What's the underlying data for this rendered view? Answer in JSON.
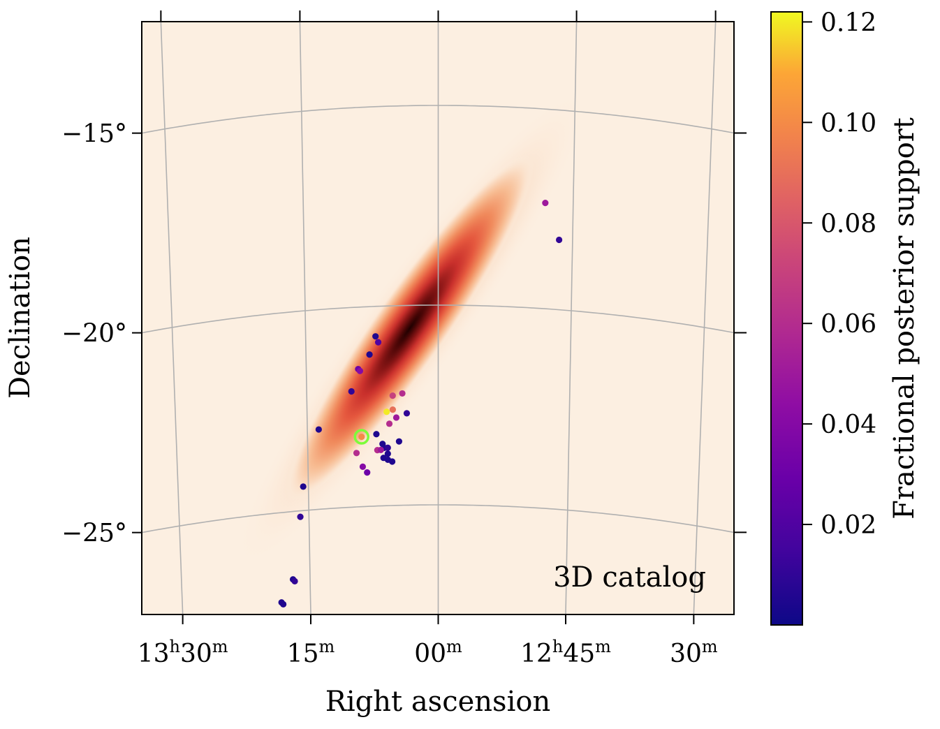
{
  "chart_data": {
    "type": "scatter",
    "projection": "sky map (RA/Dec graticule)",
    "xlabel": "Right ascension",
    "ylabel": "Declination",
    "annotation": "3D catalog",
    "x_ticks": [
      {
        "ra_min": 810,
        "main": "13",
        "sup1": "h",
        "mid": "30",
        "sup2": "m"
      },
      {
        "ra_min": 795,
        "main": "",
        "sup1": "",
        "mid": "15",
        "sup2": "m"
      },
      {
        "ra_min": 780,
        "main": "",
        "sup1": "",
        "mid": "00",
        "sup2": "m"
      },
      {
        "ra_min": 765,
        "main": "12",
        "sup1": "h",
        "mid": "45",
        "sup2": "m"
      },
      {
        "ra_min": 750,
        "main": "",
        "sup1": "",
        "mid": "30",
        "sup2": "m"
      }
    ],
    "y_ticks": [
      {
        "dec": -15,
        "label": "−15°"
      },
      {
        "dec": -20,
        "label": "−20°"
      },
      {
        "dec": -25,
        "label": "−25°"
      }
    ],
    "colorbar": {
      "label": "Fractional posterior support",
      "colormap": "plasma",
      "range": [
        0.0,
        0.122
      ],
      "ticks": [
        {
          "value": 0.02,
          "label": "0.02"
        },
        {
          "value": 0.04,
          "label": "0.04"
        },
        {
          "value": 0.06,
          "label": "0.06"
        },
        {
          "value": 0.08,
          "label": "0.08"
        },
        {
          "value": 0.1,
          "label": "0.10"
        },
        {
          "value": 0.12,
          "label": "0.12"
        }
      ]
    },
    "posterior_density": {
      "colormap": "gist_heat_r",
      "peak_ra_min": 782.7,
      "peak_dec": -20.3,
      "orientation": "elongated from lower-left (13h20m, -27°) to upper-right (12h53m, -15°)"
    },
    "highlight": {
      "ra_min": 788.8,
      "dec": -23.25,
      "color": "#7CFC3A",
      "value": 0.1
    },
    "points": [
      {
        "ra_min": 766.5,
        "dec": -18.25,
        "value": 0.01
      },
      {
        "ra_min": 768.1,
        "dec": -17.35,
        "value": 0.05
      },
      {
        "ra_min": 787.1,
        "dec": -20.75,
        "value": 0.005
      },
      {
        "ra_min": 786.8,
        "dec": -20.9,
        "value": 0.02
      },
      {
        "ra_min": 787.8,
        "dec": -21.2,
        "value": 0.005
      },
      {
        "ra_min": 789.1,
        "dec": -21.55,
        "value": 0.03
      },
      {
        "ra_min": 788.9,
        "dec": -21.6,
        "value": 0.04
      },
      {
        "ra_min": 789.9,
        "dec": -22.1,
        "value": 0.01
      },
      {
        "ra_min": 785.2,
        "dec": -22.25,
        "value": 0.07
      },
      {
        "ra_min": 784.1,
        "dec": -22.2,
        "value": 0.06
      },
      {
        "ra_min": 785.9,
        "dec": -22.65,
        "value": 0.12
      },
      {
        "ra_min": 785.2,
        "dec": -22.6,
        "value": 0.09
      },
      {
        "ra_min": 783.6,
        "dec": -22.7,
        "value": 0.01
      },
      {
        "ra_min": 784.8,
        "dec": -22.8,
        "value": 0.05
      },
      {
        "ra_min": 785.6,
        "dec": -22.95,
        "value": 0.06
      },
      {
        "ra_min": 793.7,
        "dec": -23.0,
        "value": 0.005
      },
      {
        "ra_min": 787.1,
        "dec": -23.2,
        "value": 0.005
      },
      {
        "ra_min": 786.4,
        "dec": -23.45,
        "value": 0.005
      },
      {
        "ra_min": 784.5,
        "dec": -23.4,
        "value": 0.005
      },
      {
        "ra_min": 786.2,
        "dec": -23.55,
        "value": 0.005
      },
      {
        "ra_min": 785.8,
        "dec": -23.55,
        "value": 0.01
      },
      {
        "ra_min": 787.0,
        "dec": -23.6,
        "value": 0.06
      },
      {
        "ra_min": 786.6,
        "dec": -23.6,
        "value": 0.05
      },
      {
        "ra_min": 785.8,
        "dec": -23.7,
        "value": 0.005
      },
      {
        "ra_min": 786.3,
        "dec": -23.8,
        "value": 0.005
      },
      {
        "ra_min": 785.8,
        "dec": -23.85,
        "value": 0.005
      },
      {
        "ra_min": 785.3,
        "dec": -23.9,
        "value": 0.005
      },
      {
        "ra_min": 789.4,
        "dec": -23.65,
        "value": 0.06
      },
      {
        "ra_min": 788.8,
        "dec": -23.25,
        "value": 0.1
      },
      {
        "ra_min": 788.7,
        "dec": -24.0,
        "value": 0.04
      },
      {
        "ra_min": 788.2,
        "dec": -24.15,
        "value": 0.03
      },
      {
        "ra_min": 795.6,
        "dec": -24.4,
        "value": 0.005
      },
      {
        "ra_min": 796.0,
        "dec": -25.15,
        "value": 0.01
      },
      {
        "ra_min": 797.0,
        "dec": -26.7,
        "value": 0.005
      },
      {
        "ra_min": 796.8,
        "dec": -26.75,
        "value": 0.01
      },
      {
        "ra_min": 798.4,
        "dec": -27.25,
        "value": 0.005
      },
      {
        "ra_min": 798.2,
        "dec": -27.3,
        "value": 0.005
      }
    ]
  }
}
